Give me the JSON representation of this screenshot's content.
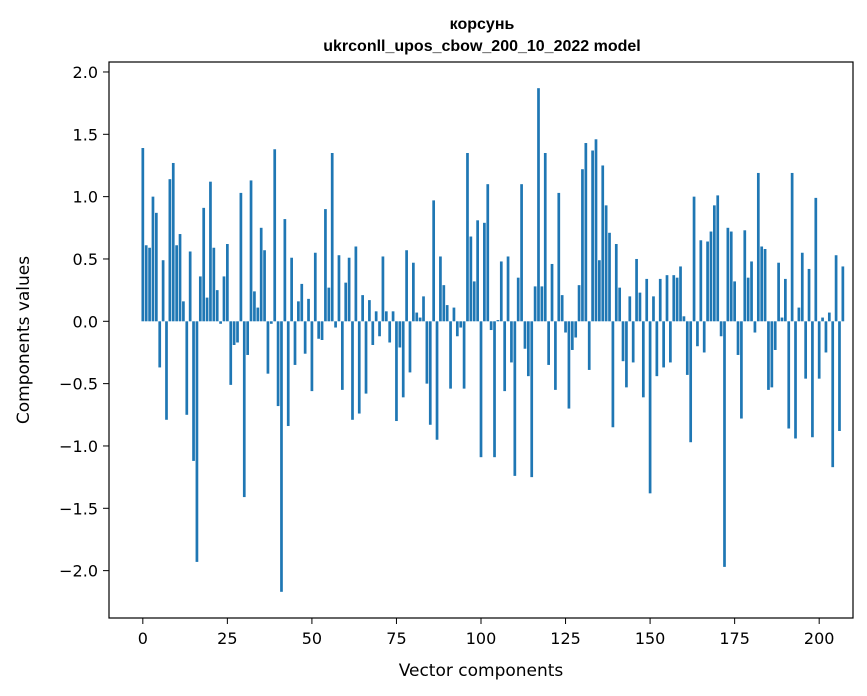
{
  "chart_data": {
    "type": "bar",
    "title": "корсунь",
    "subtitle": "ukrconll_upos_cbow_200_10_2022 model",
    "xlabel": "Vector components",
    "ylabel": "Components values",
    "xlim": [
      -10,
      210
    ],
    "ylim": [
      -2.38,
      2.08
    ],
    "xticks": [
      0,
      25,
      50,
      75,
      100,
      125,
      150,
      175,
      200
    ],
    "yticks": [
      -2.0,
      -1.5,
      -1.0,
      -0.5,
      0.0,
      0.5,
      1.0,
      1.5,
      2.0
    ],
    "ytick_labels": [
      "−2.0",
      "−1.5",
      "−1.0",
      "−0.5",
      "0.0",
      "0.5",
      "1.0",
      "1.5",
      "2.0"
    ],
    "bar_color": "#1f77b4",
    "grid": false,
    "values": [
      1.39,
      0.61,
      0.59,
      1.0,
      0.87,
      -0.37,
      0.49,
      -0.79,
      1.14,
      1.27,
      0.61,
      0.7,
      0.16,
      -0.75,
      0.56,
      -1.12,
      -1.93,
      0.36,
      0.91,
      0.19,
      1.12,
      0.59,
      0.25,
      -0.02,
      0.36,
      0.62,
      -0.51,
      -0.19,
      -0.17,
      1.03,
      -1.41,
      -0.27,
      1.13,
      0.24,
      0.11,
      0.75,
      0.57,
      -0.42,
      -0.02,
      1.38,
      -0.68,
      -2.17,
      0.82,
      -0.84,
      0.51,
      -0.35,
      0.16,
      0.3,
      -0.26,
      0.18,
      -0.56,
      0.55,
      -0.14,
      -0.15,
      0.9,
      0.27,
      1.35,
      -0.05,
      0.53,
      -0.55,
      0.31,
      0.51,
      -0.79,
      0.6,
      -0.74,
      0.21,
      -0.58,
      0.17,
      -0.19,
      0.08,
      -0.12,
      0.52,
      0.08,
      -0.17,
      0.08,
      -0.8,
      -0.21,
      -0.61,
      0.57,
      -0.41,
      0.47,
      0.07,
      0.03,
      0.2,
      -0.5,
      -0.83,
      0.97,
      -0.95,
      0.52,
      0.29,
      0.13,
      -0.54,
      0.11,
      -0.12,
      -0.05,
      -0.54,
      1.35,
      0.68,
      0.32,
      0.81,
      -1.09,
      0.79,
      1.1,
      -0.07,
      -1.09,
      0.01,
      0.48,
      -0.56,
      0.52,
      -0.33,
      -1.24,
      0.35,
      1.1,
      -0.22,
      -0.44,
      -1.25,
      0.28,
      1.87,
      0.28,
      1.35,
      -0.35,
      0.46,
      -0.55,
      1.03,
      0.21,
      -0.09,
      -0.7,
      -0.23,
      -0.13,
      0.29,
      1.22,
      1.43,
      -0.39,
      1.37,
      1.46,
      0.49,
      1.25,
      0.93,
      0.71,
      -0.85,
      0.62,
      0.27,
      -0.32,
      -0.53,
      0.2,
      -0.33,
      0.5,
      0.23,
      -0.61,
      0.34,
      -1.38,
      0.2,
      -0.44,
      0.34,
      -0.37,
      0.37,
      -0.33,
      0.37,
      0.35,
      0.44,
      0.04,
      -0.43,
      -0.97,
      1.0,
      -0.2,
      0.65,
      -0.25,
      0.64,
      0.72,
      0.93,
      1.01,
      -0.12,
      -1.97,
      0.75,
      0.72,
      0.32,
      -0.27,
      -0.78,
      0.73,
      0.35,
      0.48,
      -0.09,
      1.19,
      0.6,
      0.58,
      -0.55,
      -0.53,
      -0.23,
      0.47,
      0.03,
      0.34,
      -0.86,
      1.19,
      -0.94,
      0.11,
      0.55,
      -0.46,
      0.42,
      -0.93,
      0.99,
      -0.46,
      0.03,
      -0.25,
      0.07,
      -1.17,
      0.53,
      -0.88,
      0.44
    ]
  }
}
